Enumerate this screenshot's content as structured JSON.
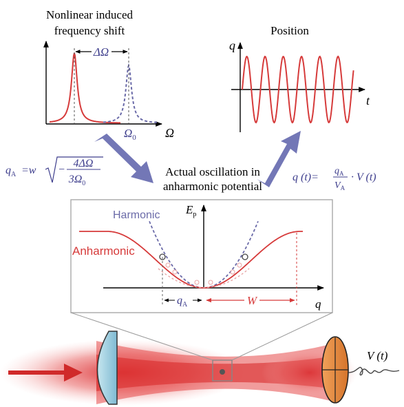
{
  "top_left": {
    "title_line1": "Nonlinear induced",
    "title_line2": "frequency shift",
    "delta_label": "ΔΩ",
    "omega0_main": "Ω",
    "omega0_sub": "0",
    "axis_label": "Ω"
  },
  "top_right": {
    "title": "Position",
    "y_axis": "q",
    "x_axis": "t"
  },
  "middle": {
    "caption_line1": "Actual oscillation in",
    "caption_line2": "anharmonic potential",
    "left_formula": {
      "q": "q",
      "q_sub": "A",
      "eq_w": "=w",
      "num": "4ΔΩ",
      "minus": "−",
      "den": "3Ω",
      "den_sub": "0"
    },
    "right_formula": {
      "lhs": "q (t)=",
      "frac_num": "q",
      "frac_num_sub": "A",
      "frac_den": "V",
      "frac_den_sub": "A",
      "rhs": "· V (t)"
    }
  },
  "potential_panel": {
    "harmonic_label": "Harmonic",
    "anharmonic_label": "Anharmonic",
    "y_axis_main": "E",
    "y_axis_sub": "p",
    "x_axis": "q",
    "qA_main": "q",
    "qA_sub": "A",
    "w_label": "W"
  },
  "bottom": {
    "voltage_label": "V (t)"
  },
  "colors": {
    "red": "#d63a3a",
    "blue_dash": "#6a6aa8",
    "arrow_blue": "#7377b6",
    "formula_blue": "#3d3d8c",
    "lens_blue": "#9fcfe0",
    "detector_orange": "#e38a3f"
  }
}
